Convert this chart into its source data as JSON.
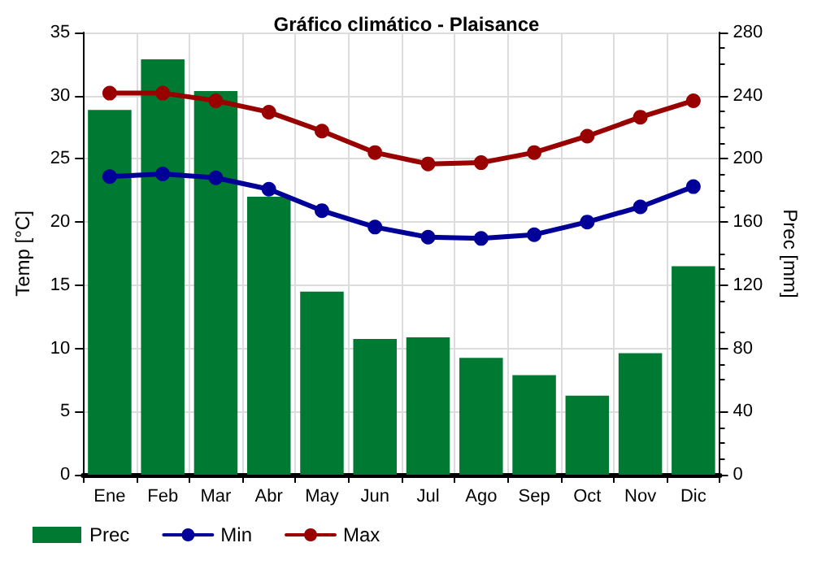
{
  "chart_data": {
    "type": "bar",
    "title": "Gráfico climático - Plaisance",
    "ylabel": "Temp [°C]",
    "y2label": "Prec [mm]",
    "categories": [
      "Ene",
      "Feb",
      "Mar",
      "Abr",
      "May",
      "Jun",
      "Jul",
      "Ago",
      "Sep",
      "Oct",
      "Nov",
      "Dic"
    ],
    "series": [
      {
        "name": "Prec",
        "axis": "y2",
        "color": "#007a33",
        "values": [
          231,
          263,
          243,
          176,
          116,
          86,
          87,
          74,
          63,
          50,
          77,
          132
        ]
      },
      {
        "name": "Min",
        "type": "line",
        "color": "#000099",
        "values": [
          23.6,
          23.8,
          23.5,
          22.6,
          20.9,
          19.6,
          18.8,
          18.7,
          19.0,
          20.0,
          21.2,
          22.8
        ]
      },
      {
        "name": "Max",
        "type": "line",
        "color": "#990000",
        "values": [
          30.2,
          30.2,
          29.6,
          28.7,
          27.2,
          25.5,
          24.6,
          24.7,
          25.5,
          26.8,
          28.3,
          29.6
        ]
      }
    ],
    "ylim": [
      0,
      35
    ],
    "yticks": [
      0,
      5,
      10,
      15,
      20,
      25,
      30,
      35
    ],
    "y2lim": [
      0,
      280
    ],
    "y2ticks": [
      0,
      40,
      80,
      120,
      160,
      200,
      240,
      280
    ],
    "grid": true,
    "legend": "bottom left",
    "marker": "circle",
    "line_style": "solid"
  }
}
